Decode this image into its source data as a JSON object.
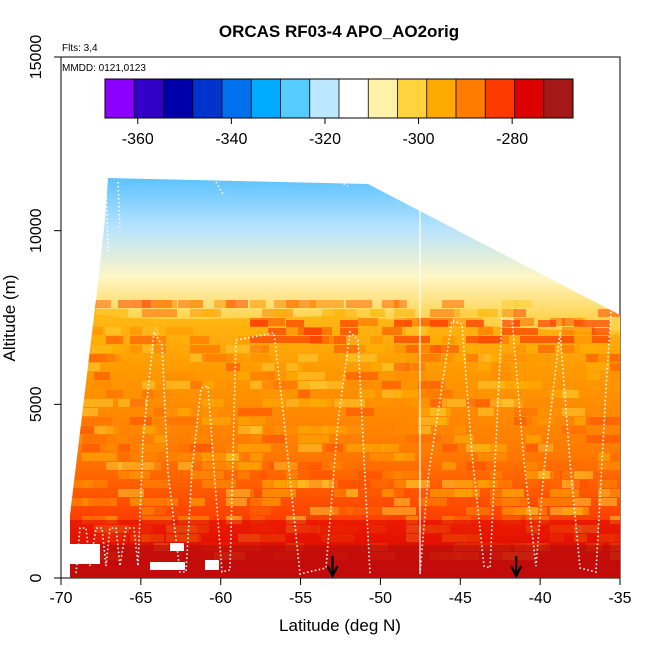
{
  "chart_data": {
    "type": "heatmap",
    "title": "ORCAS RF03-4 APO_AO2orig",
    "xlabel": "Latitude (deg N)",
    "ylabel": "Altitude (m)",
    "xlim": [
      -70,
      -35
    ],
    "ylim": [
      0,
      15000
    ],
    "x_ticks": [
      -70,
      -65,
      -60,
      -55,
      -50,
      -45,
      -40,
      -35
    ],
    "y_ticks": [
      0,
      5000,
      10000,
      15000
    ],
    "annotations": [
      "Flts: 3,4",
      "MMDD: 0121,0123"
    ],
    "colorbar": {
      "range": [
        -367,
        -267
      ],
      "ticks": [
        -360,
        -340,
        -320,
        -300,
        -280
      ],
      "colors": [
        "#8b00ff",
        "#3300c8",
        "#0000a8",
        "#0033cc",
        "#0070ee",
        "#00aaff",
        "#55ccff",
        "#bbe8ff",
        "#ffffff",
        "#fff2a8",
        "#ffd33d",
        "#ffaa00",
        "#ff7c00",
        "#ff3a00",
        "#dd0000",
        "#a51818"
      ]
    },
    "arrow_latitudes": [
      -53,
      -41.5
    ],
    "grid": false
  }
}
